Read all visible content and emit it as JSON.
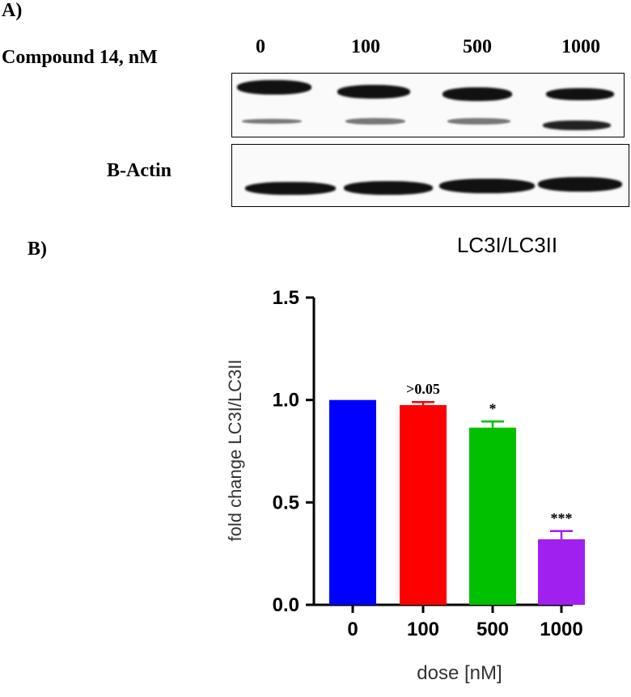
{
  "panel_a": {
    "label": "A)",
    "compound_label": "Compound 14, nM",
    "lanes": [
      "0",
      "100",
      "500",
      "1000"
    ],
    "loading_control": "B-Actin"
  },
  "panel_b": {
    "label": "B)"
  },
  "chart_data": {
    "type": "bar",
    "title": "LC3I/LC3II",
    "xlabel": "dose [nM]",
    "ylabel": "fold change LC3I/LC3II",
    "categories": [
      "0",
      "100",
      "500",
      "1000"
    ],
    "values": [
      1.0,
      0.975,
      0.865,
      0.32
    ],
    "errors": [
      0.0,
      0.015,
      0.03,
      0.04
    ],
    "annotations": [
      "",
      ">0.05",
      "*",
      "***"
    ],
    "colors": [
      "#0000ff",
      "#ff0000",
      "#00c000",
      "#a020f0"
    ],
    "ylim": [
      0,
      1.5
    ],
    "yticks": [
      "0.0",
      "0.5",
      "1.0",
      "1.5"
    ],
    "grid": false,
    "legend": "none"
  }
}
